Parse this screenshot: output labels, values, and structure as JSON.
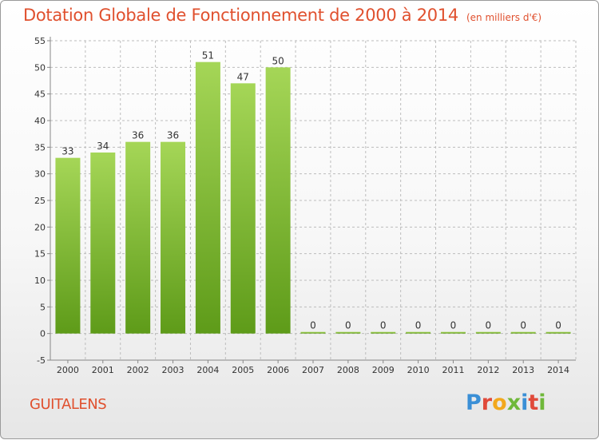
{
  "header": {
    "title": "Dotation Globale de Fonctionnement de 2000 à 2014",
    "subtitle": "(en milliers d'€)"
  },
  "footer": {
    "place": "GUITALENS",
    "logo": "Proxiti"
  },
  "colors": {
    "title": "#e0502e",
    "bar_light": "#9fd150",
    "bar_dark": "#5f9e1a",
    "grid": "#bdbdbd"
  },
  "chart_data": {
    "type": "bar",
    "title": "Dotation Globale de Fonctionnement de 2000 à 2014",
    "xlabel": "",
    "ylabel": "",
    "categories": [
      "2000",
      "2001",
      "2002",
      "2003",
      "2004",
      "2005",
      "2006",
      "2007",
      "2008",
      "2009",
      "2010",
      "2011",
      "2012",
      "2013",
      "2014"
    ],
    "values": [
      33,
      34,
      36,
      36,
      51,
      47,
      50,
      0,
      0,
      0,
      0,
      0,
      0,
      0,
      0
    ],
    "ylim": [
      -5,
      55
    ],
    "yticks": [
      -5,
      0,
      5,
      10,
      15,
      20,
      25,
      30,
      35,
      40,
      45,
      50,
      55
    ],
    "grid": true,
    "data_labels": true
  }
}
